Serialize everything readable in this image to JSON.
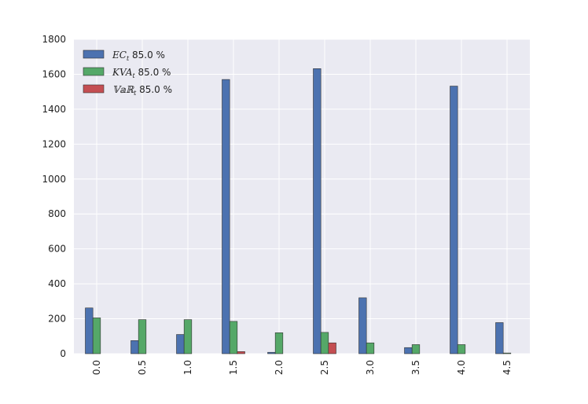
{
  "chart_data": {
    "type": "bar",
    "categories": [
      "0.0",
      "0.5",
      "1.0",
      "1.5",
      "2.0",
      "2.5",
      "3.0",
      "3.5",
      "4.0",
      "4.5"
    ],
    "series": [
      {
        "name": "EC_t 85.0 %",
        "legend_symbol": "EC",
        "legend_sub": "t",
        "legend_suffix": " 85.0 %",
        "color": "#4c72b0",
        "values": [
          262,
          75,
          110,
          1570,
          8,
          1632,
          320,
          35,
          1532,
          178
        ]
      },
      {
        "name": "KVA_t 85.0 %",
        "legend_symbol": "KVA",
        "legend_sub": "t",
        "legend_suffix": " 85.0 %",
        "color": "#55a868",
        "values": [
          205,
          195,
          195,
          185,
          120,
          122,
          62,
          52,
          52,
          4
        ]
      },
      {
        "name": "VaR_t 85.0 %",
        "legend_symbol": "𝕍𝕒ℝ",
        "legend_sub": "t",
        "legend_suffix": " 85.0 %",
        "color": "#c44e52",
        "values": [
          0,
          0,
          0,
          12,
          0,
          62,
          0,
          0,
          0,
          0
        ]
      }
    ],
    "yticks": [
      "0",
      "200",
      "400",
      "600",
      "800",
      "1000",
      "1200",
      "1400",
      "1600",
      "1800"
    ],
    "ylim": [
      0,
      1800
    ],
    "legend_position": "top-left",
    "grid": true,
    "background": "#eaeaf2"
  }
}
